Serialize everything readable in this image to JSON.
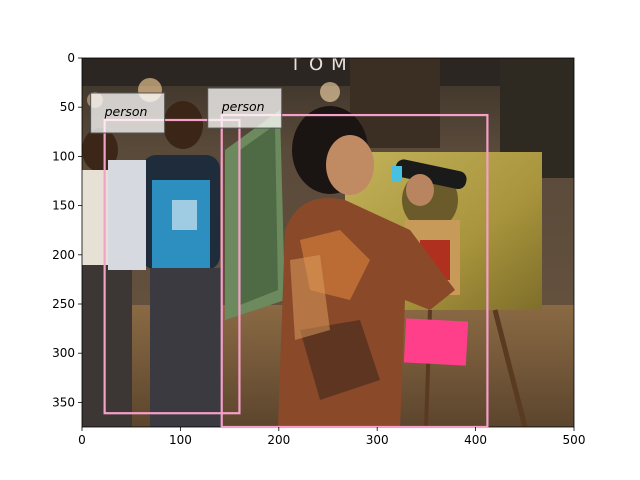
{
  "figure": {
    "image_description_colors": {
      "storefront_sign": "#2a2620",
      "painting_yellow": "#b7a84a",
      "pink_sign": "#ff3f8a",
      "box_color": "#f5a0c8"
    },
    "storefront_text": "TOMMY",
    "axes": {
      "xlim": [
        0,
        500
      ],
      "ylim": [
        375,
        0
      ],
      "x_ticks": [
        "0",
        "100",
        "200",
        "300",
        "400",
        "500"
      ],
      "y_ticks": [
        "0",
        "50",
        "100",
        "150",
        "200",
        "250",
        "300",
        "350"
      ],
      "x_tick_values": [
        0,
        100,
        200,
        300,
        400,
        500
      ],
      "y_tick_values": [
        0,
        50,
        100,
        150,
        200,
        250,
        300,
        350
      ]
    },
    "boxes": [
      {
        "label": "person",
        "x0": 23,
        "y0": 63,
        "x1": 160,
        "y1": 361
      },
      {
        "label": "person",
        "x0": 142,
        "y0": 58,
        "x1": 412,
        "y1": 375
      }
    ],
    "label_boxes_text": [
      "person",
      "person"
    ]
  }
}
